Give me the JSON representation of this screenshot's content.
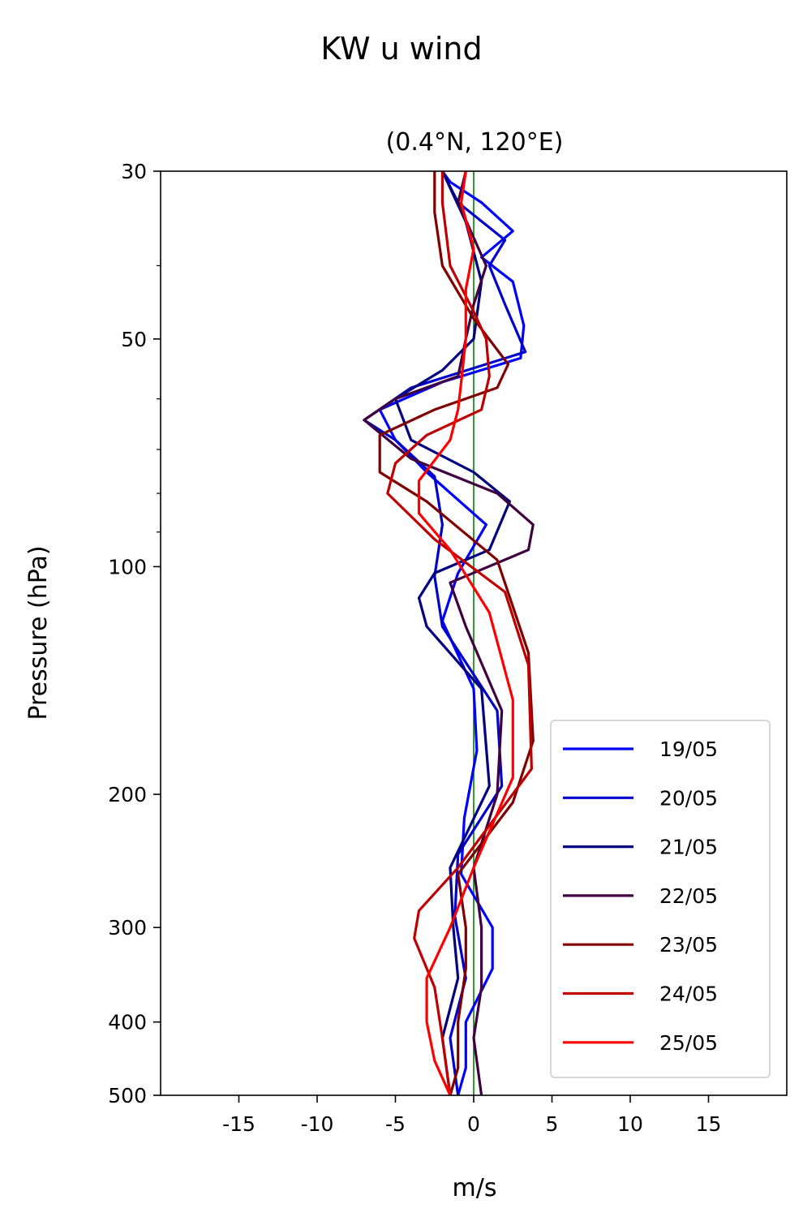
{
  "chart_data": {
    "type": "line",
    "title": "KW u wind",
    "subtitle": "(0.4°N, 120°E)",
    "xlabel": "m/s",
    "ylabel": "Pressure (hPa)",
    "xlim": [
      -20,
      20
    ],
    "ylim": [
      500,
      30
    ],
    "yscale": "log",
    "xticks": [
      -15,
      -10,
      -5,
      0,
      5,
      10,
      15
    ],
    "xtick_labels": [
      "-15",
      "-10",
      "-5",
      "0",
      "5",
      "10",
      "15"
    ],
    "yticks": [
      30,
      50,
      100,
      200,
      300,
      400,
      500
    ],
    "ytick_labels": [
      "30",
      "50",
      "100",
      "200",
      "300",
      "400",
      "500"
    ],
    "y_minor_ticks": [
      40,
      60,
      70,
      80,
      90
    ],
    "reference_line": {
      "x": 0,
      "color": "#008000"
    },
    "legend": {
      "placement": "lower right"
    },
    "series": [
      {
        "name": "19/05",
        "color": "#0000ff",
        "points": [
          [
            -2.0,
            30
          ],
          [
            -1.5,
            31
          ],
          [
            0.5,
            33
          ],
          [
            2.5,
            36
          ],
          [
            0.5,
            39
          ],
          [
            2.5,
            42
          ],
          [
            3.2,
            48
          ],
          [
            3.0,
            53
          ],
          [
            -2.0,
            57
          ],
          [
            -6.0,
            62
          ],
          [
            -5.0,
            68
          ],
          [
            -3.0,
            75
          ],
          [
            0.8,
            88
          ],
          [
            -1.0,
            102
          ],
          [
            -2.0,
            118
          ],
          [
            0.0,
            145
          ],
          [
            0.2,
            175
          ],
          [
            -0.6,
            215
          ],
          [
            -0.8,
            255
          ],
          [
            1.2,
            300
          ],
          [
            1.2,
            340
          ],
          [
            -0.5,
            400
          ],
          [
            -0.5,
            460
          ],
          [
            -1.0,
            500
          ]
        ]
      },
      {
        "name": "20/05",
        "color": "#0000cc",
        "points": [
          [
            -2.0,
            30
          ],
          [
            -1.0,
            33
          ],
          [
            2.0,
            37
          ],
          [
            1.0,
            40
          ],
          [
            2.0,
            45
          ],
          [
            3.3,
            52
          ],
          [
            -4.0,
            58
          ],
          [
            -7.0,
            64
          ],
          [
            -5.0,
            68
          ],
          [
            -2.5,
            76
          ],
          [
            -2.0,
            88
          ],
          [
            -2.5,
            103
          ],
          [
            -2.0,
            120
          ],
          [
            1.5,
            155
          ],
          [
            1.8,
            195
          ],
          [
            -1.0,
            240
          ],
          [
            -1.2,
            290
          ],
          [
            -0.5,
            350
          ],
          [
            -1.5,
            420
          ],
          [
            -1.0,
            500
          ]
        ]
      },
      {
        "name": "21/05",
        "color": "#000080",
        "points": [
          [
            -2.0,
            30
          ],
          [
            -0.5,
            35
          ],
          [
            0.5,
            42
          ],
          [
            0.0,
            50
          ],
          [
            -2.0,
            55
          ],
          [
            -5.0,
            60
          ],
          [
            -4.0,
            68
          ],
          [
            0.0,
            75
          ],
          [
            2.3,
            82
          ],
          [
            1.0,
            95
          ],
          [
            -2.5,
            102
          ],
          [
            -3.5,
            110
          ],
          [
            -3.0,
            120
          ],
          [
            0.5,
            145
          ],
          [
            1.0,
            195
          ],
          [
            -1.5,
            250
          ],
          [
            -1.3,
            300
          ],
          [
            -1.0,
            350
          ],
          [
            -2.0,
            420
          ],
          [
            -1.5,
            500
          ]
        ]
      },
      {
        "name": "22/05",
        "color": "#400040",
        "points": [
          [
            -0.5,
            30
          ],
          [
            -1.0,
            33
          ],
          [
            0.8,
            40
          ],
          [
            0.0,
            45
          ],
          [
            -0.5,
            50
          ],
          [
            -1.0,
            56
          ],
          [
            -5.0,
            60
          ],
          [
            -7.0,
            64
          ],
          [
            -4.0,
            72
          ],
          [
            1.5,
            80
          ],
          [
            3.8,
            88
          ],
          [
            3.5,
            95
          ],
          [
            -1.5,
            105
          ],
          [
            -0.5,
            120
          ],
          [
            1.8,
            155
          ],
          [
            1.5,
            200
          ],
          [
            0.0,
            250
          ],
          [
            0.5,
            300
          ],
          [
            0.5,
            360
          ],
          [
            0.0,
            420
          ],
          [
            0.5,
            500
          ]
        ]
      },
      {
        "name": "23/05",
        "color": "#800000",
        "points": [
          [
            -2.5,
            30
          ],
          [
            -2.5,
            34
          ],
          [
            -2.0,
            40
          ],
          [
            0.0,
            47
          ],
          [
            2.2,
            54
          ],
          [
            1.5,
            58
          ],
          [
            -2.5,
            62
          ],
          [
            -6.0,
            67
          ],
          [
            -6.0,
            75
          ],
          [
            -3.0,
            82
          ],
          [
            1.5,
            98
          ],
          [
            3.5,
            130
          ],
          [
            3.8,
            170
          ],
          [
            2.5,
            205
          ],
          [
            -1.0,
            255
          ],
          [
            -0.5,
            300
          ],
          [
            -0.5,
            340
          ],
          [
            -1.0,
            400
          ],
          [
            -1.0,
            460
          ],
          [
            -1.5,
            500
          ]
        ]
      },
      {
        "name": "24/05",
        "color": "#c00000",
        "points": [
          [
            -2.0,
            30
          ],
          [
            -2.0,
            33
          ],
          [
            -1.5,
            40
          ],
          [
            0.0,
            46
          ],
          [
            0.8,
            50
          ],
          [
            1.0,
            56
          ],
          [
            0.5,
            62
          ],
          [
            -3.0,
            67
          ],
          [
            -5.0,
            73
          ],
          [
            -5.5,
            80
          ],
          [
            -2.5,
            92
          ],
          [
            2.0,
            108
          ],
          [
            3.5,
            135
          ],
          [
            3.7,
            185
          ],
          [
            -1.0,
            250
          ],
          [
            -3.5,
            285
          ],
          [
            -3.8,
            310
          ],
          [
            -2.5,
            360
          ],
          [
            -2.0,
            420
          ],
          [
            -1.5,
            500
          ]
        ]
      },
      {
        "name": "25/05",
        "color": "#ff0000",
        "points": [
          [
            -0.5,
            30
          ],
          [
            -0.8,
            33
          ],
          [
            0.0,
            38
          ],
          [
            -0.5,
            43
          ],
          [
            -0.5,
            50
          ],
          [
            -0.8,
            57
          ],
          [
            -1.0,
            62
          ],
          [
            -1.5,
            68
          ],
          [
            -3.5,
            77
          ],
          [
            -3.5,
            85
          ],
          [
            -1.5,
            95
          ],
          [
            1.0,
            115
          ],
          [
            2.5,
            150
          ],
          [
            2.5,
            190
          ],
          [
            0.0,
            250
          ],
          [
            -1.5,
            300
          ],
          [
            -3.0,
            350
          ],
          [
            -3.0,
            400
          ],
          [
            -2.5,
            450
          ],
          [
            -1.5,
            500
          ]
        ]
      }
    ]
  }
}
